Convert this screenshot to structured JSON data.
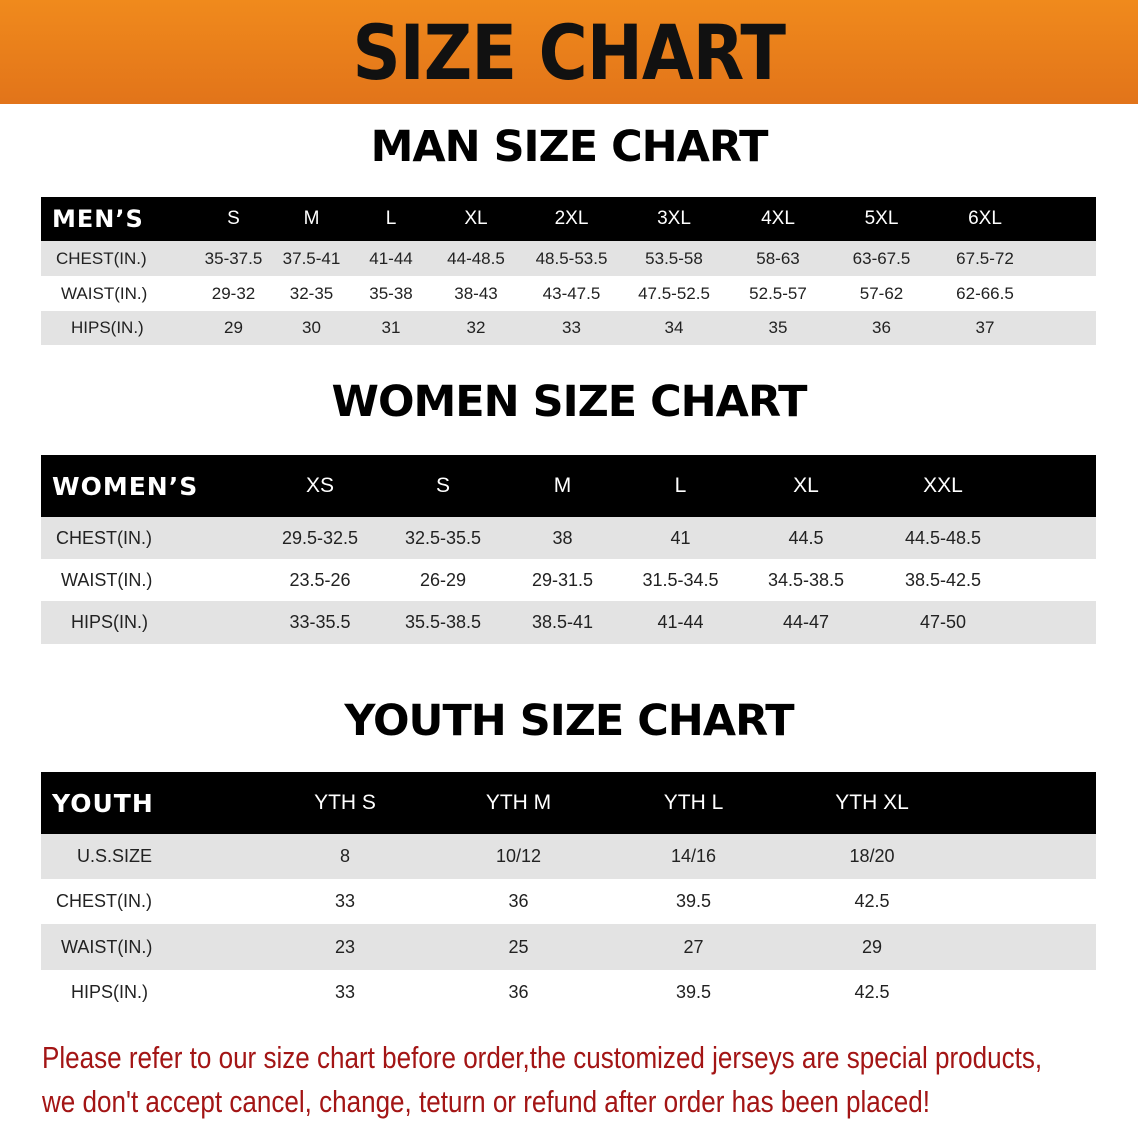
{
  "banner_title": "SIZE CHART",
  "tables": [
    {
      "id": "men",
      "title": "MAN SIZE CHART",
      "header_label": "MEN’S",
      "sizes": [
        "S",
        "M",
        "L",
        "XL",
        "2XL",
        "3XL",
        "4XL",
        "5XL",
        "6XL"
      ],
      "rows": [
        {
          "label": "CHEST(IN.)",
          "values": [
            "35-37.5",
            "37.5-41",
            "41-44",
            "44-48.5",
            "48.5-53.5",
            "53.5-58",
            "58-63",
            "63-67.5",
            "67.5-72"
          ]
        },
        {
          "label": "WAIST(IN.)",
          "values": [
            "29-32",
            "32-35",
            "35-38",
            "38-43",
            "43-47.5",
            "47.5-52.5",
            "52.5-57",
            "57-62",
            "62-66.5"
          ]
        },
        {
          "label": "HIPS(IN.)",
          "values": [
            "29",
            "30",
            "31",
            "32",
            "33",
            "34",
            "35",
            "36",
            "37"
          ]
        }
      ]
    },
    {
      "id": "women",
      "title": "WOMEN SIZE CHART",
      "header_label": "WOMEN’S",
      "sizes": [
        "XS",
        "S",
        "M",
        "L",
        "XL",
        "XXL"
      ],
      "rows": [
        {
          "label": "CHEST(IN.)",
          "values": [
            "29.5-32.5",
            "32.5-35.5",
            "38",
            "41",
            "44.5",
            "44.5-48.5"
          ]
        },
        {
          "label": "WAIST(IN.)",
          "values": [
            "23.5-26",
            "26-29",
            "29-31.5",
            "31.5-34.5",
            "34.5-38.5",
            "38.5-42.5"
          ]
        },
        {
          "label": "HIPS(IN.)",
          "values": [
            "33-35.5",
            "35.5-38.5",
            "38.5-41",
            "41-44",
            "44-47",
            "47-50"
          ]
        }
      ]
    },
    {
      "id": "youth",
      "title": "YOUTH SIZE CHART",
      "header_label": "YOUTH",
      "sizes": [
        "YTH S",
        "YTH M",
        "YTH L",
        "YTH XL"
      ],
      "rows": [
        {
          "label": "U.S.SIZE",
          "values": [
            "8",
            "10/12",
            "14/16",
            "18/20"
          ]
        },
        {
          "label": "CHEST(IN.)",
          "values": [
            "33",
            "36",
            "39.5",
            "42.5"
          ]
        },
        {
          "label": "WAIST(IN.)",
          "values": [
            "23",
            "25",
            "27",
            "29"
          ]
        },
        {
          "label": "HIPS(IN.)",
          "values": [
            "33",
            "36",
            "39.5",
            "42.5"
          ]
        }
      ]
    }
  ],
  "notice": {
    "line1": "Please refer to our size chart before order,the customized jerseys are special products,",
    "line2": "we don't accept cancel, change, teturn or refund after order has been placed!"
  },
  "colors": {
    "banner": "#e8801b",
    "header_bg": "#000000",
    "row_gray": "#e3e3e3",
    "notice": "#a31515"
  }
}
